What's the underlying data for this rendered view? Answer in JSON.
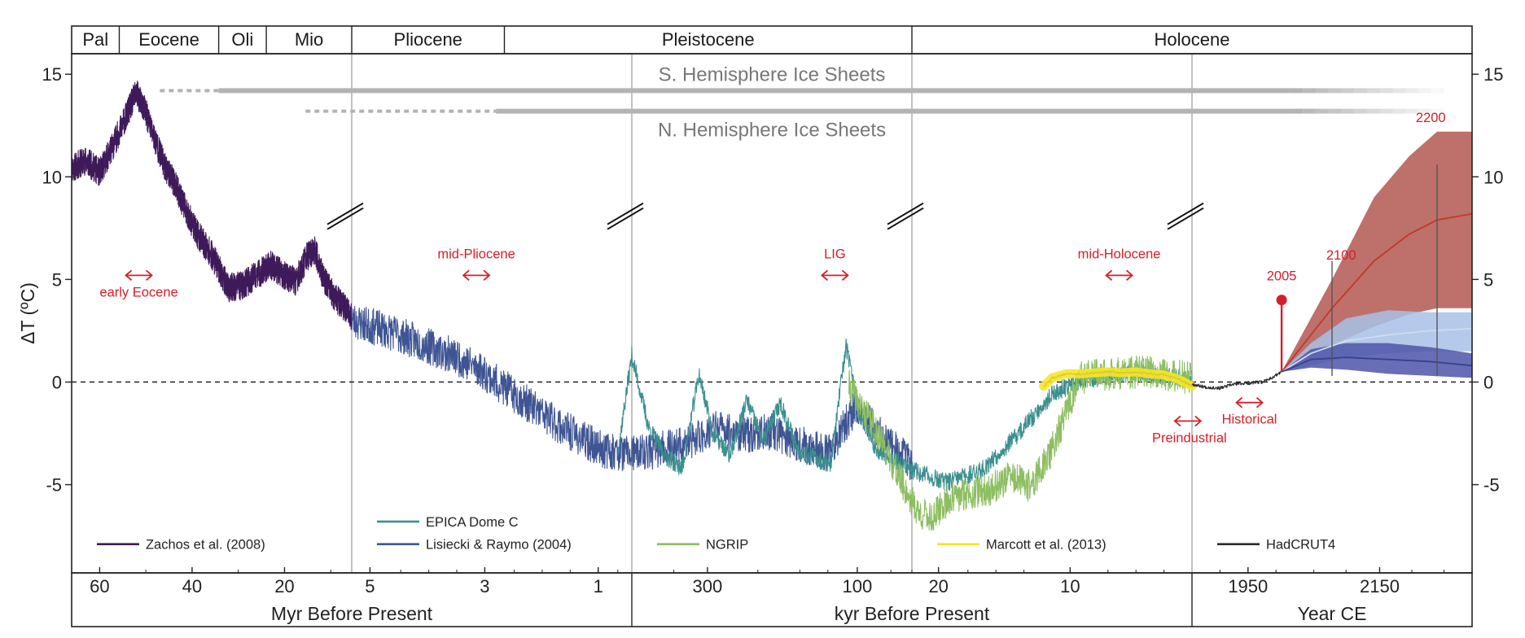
{
  "chart_data": {
    "type": "line",
    "ylabel": "ΔT (ºC)",
    "ylim": [
      -9.3,
      16.0
    ],
    "y_ticks": [
      15,
      10,
      5,
      0,
      -5
    ],
    "y_tick_labels": [
      "15",
      "10",
      "5",
      "0",
      "-5"
    ],
    "zero_line": "dashed",
    "epochs": [
      {
        "label": "Pal",
        "start": 0.0,
        "end": 0.034
      },
      {
        "label": "Eocene",
        "start": 0.034,
        "end": 0.105
      },
      {
        "label": "Oli",
        "start": 0.105,
        "end": 0.139
      },
      {
        "label": "Mio",
        "start": 0.139,
        "end": 0.2
      },
      {
        "label": "Pliocene",
        "start": 0.2,
        "end": 0.309
      },
      {
        "label": "Pleistocene",
        "start": 0.309,
        "end": 0.6
      },
      {
        "label": "Holocene",
        "start": 0.6,
        "end": 1.0
      }
    ],
    "panels": [
      {
        "id": "myr",
        "xlabel": "Myr Before Present",
        "start": 0.0,
        "end": 0.4,
        "ticks": [
          {
            "label": "60",
            "pos": 0.02
          },
          {
            "label": "40",
            "pos": 0.086
          },
          {
            "label": "20",
            "pos": 0.152
          },
          {
            "label": "5",
            "pos": 0.213
          },
          {
            "label": "3",
            "pos": 0.295
          },
          {
            "label": "1",
            "pos": 0.376
          }
        ]
      },
      {
        "id": "kyr",
        "xlabel": "kyr Before Present",
        "start": 0.4,
        "end": 0.8,
        "ticks": [
          {
            "label": "300",
            "pos": 0.454
          },
          {
            "label": "100",
            "pos": 0.561
          },
          {
            "label": "20",
            "pos": 0.619
          },
          {
            "label": "10",
            "pos": 0.713
          }
        ]
      },
      {
        "id": "ce",
        "xlabel": "Year CE",
        "start": 0.8,
        "end": 1.0,
        "ticks": [
          {
            "label": "1950",
            "pos": 0.84
          },
          {
            "label": "2150",
            "pos": 0.934
          }
        ]
      }
    ],
    "axis_breaks": [
      0.2,
      0.4,
      0.6,
      0.8
    ],
    "ice_sheets": [
      {
        "label": "S. Hemisphere Ice Sheets",
        "dash_start": 0.063,
        "solid_start": 0.105,
        "fade_start": 0.87,
        "end": 0.98,
        "y": 14.2
      },
      {
        "label": "N. Hemisphere Ice Sheets",
        "dash_start": 0.167,
        "solid_start": 0.303,
        "fade_start": 0.87,
        "end": 0.98,
        "y": 13.2
      }
    ],
    "annotations": [
      {
        "label": "early Eocene",
        "x": 0.048,
        "y": 5.2
      },
      {
        "label": "mid-Pliocene",
        "x": 0.289,
        "y": 5.2
      },
      {
        "label": "LIG",
        "x": 0.545,
        "y": 5.2
      },
      {
        "label": "mid-Holocene",
        "x": 0.748,
        "y": 5.2
      },
      {
        "label": "Preindustrial",
        "x": 0.797,
        "y": -1.9
      },
      {
        "label": "Historical",
        "x": 0.841,
        "y": -1.0
      }
    ],
    "projection_labels": [
      {
        "label": "2005",
        "x": 0.864,
        "y": 4.0
      },
      {
        "label": "2100",
        "x": 0.91,
        "y": 5.5
      },
      {
        "label": "2200",
        "x": 0.974,
        "y": 12.2
      }
    ],
    "series": [
      {
        "name": "Zachos et al. (2008)",
        "color": "#3f1a5a",
        "points": [
          [
            0.0,
            10.4
          ],
          [
            0.01,
            10.8
          ],
          [
            0.02,
            10.2
          ],
          [
            0.03,
            11.6
          ],
          [
            0.038,
            12.8
          ],
          [
            0.046,
            14.1
          ],
          [
            0.052,
            13.3
          ],
          [
            0.058,
            12.1
          ],
          [
            0.066,
            10.6
          ],
          [
            0.074,
            9.6
          ],
          [
            0.082,
            8.3
          ],
          [
            0.09,
            7.2
          ],
          [
            0.1,
            6.2
          ],
          [
            0.106,
            5.4
          ],
          [
            0.112,
            4.6
          ],
          [
            0.122,
            4.7
          ],
          [
            0.132,
            5.2
          ],
          [
            0.142,
            5.7
          ],
          [
            0.152,
            5.2
          ],
          [
            0.16,
            4.9
          ],
          [
            0.168,
            6.1
          ],
          [
            0.174,
            6.4
          ],
          [
            0.18,
            5.0
          ],
          [
            0.188,
            4.1
          ],
          [
            0.196,
            3.6
          ],
          [
            0.2,
            3.1
          ]
        ]
      },
      {
        "name": "Lisiecki & Raymo (2004)",
        "color": "#3f5593",
        "points": [
          [
            0.2,
            3.0
          ],
          [
            0.215,
            2.7
          ],
          [
            0.23,
            2.4
          ],
          [
            0.245,
            2.0
          ],
          [
            0.26,
            1.6
          ],
          [
            0.275,
            1.2
          ],
          [
            0.29,
            0.7
          ],
          [
            0.305,
            -0.1
          ],
          [
            0.32,
            -0.8
          ],
          [
            0.335,
            -1.5
          ],
          [
            0.35,
            -2.2
          ],
          [
            0.365,
            -2.8
          ],
          [
            0.38,
            -3.3
          ],
          [
            0.4,
            -3.5
          ],
          [
            0.42,
            -3.3
          ],
          [
            0.44,
            -3.0
          ],
          [
            0.46,
            -2.2
          ],
          [
            0.48,
            -2.6
          ],
          [
            0.5,
            -2.4
          ],
          [
            0.52,
            -3.0
          ],
          [
            0.54,
            -3.5
          ],
          [
            0.56,
            -1.2
          ],
          [
            0.58,
            -2.8
          ],
          [
            0.6,
            -4.0
          ]
        ]
      },
      {
        "name": "EPICA Dome C",
        "color": "#3b8f8e",
        "points": [
          [
            0.39,
            -3.4
          ],
          [
            0.4,
            1.3
          ],
          [
            0.412,
            -2.2
          ],
          [
            0.424,
            -3.6
          ],
          [
            0.436,
            -4.2
          ],
          [
            0.448,
            0.4
          ],
          [
            0.458,
            -2.5
          ],
          [
            0.47,
            -3.6
          ],
          [
            0.482,
            -0.9
          ],
          [
            0.494,
            -2.9
          ],
          [
            0.506,
            -1.0
          ],
          [
            0.518,
            -3.2
          ],
          [
            0.53,
            -3.7
          ],
          [
            0.542,
            -4.0
          ],
          [
            0.553,
            1.8
          ],
          [
            0.562,
            -1.5
          ],
          [
            0.574,
            -3.2
          ],
          [
            0.586,
            -3.8
          ],
          [
            0.6,
            -4.3
          ],
          [
            0.625,
            -4.9
          ],
          [
            0.65,
            -4.3
          ],
          [
            0.675,
            -2.6
          ],
          [
            0.7,
            -0.6
          ],
          [
            0.72,
            0.1
          ],
          [
            0.76,
            0.5
          ],
          [
            0.8,
            0.1
          ]
        ]
      },
      {
        "name": "NGRIP",
        "color": "#8dbe62",
        "points": [
          [
            0.555,
            -0.2
          ],
          [
            0.565,
            -1.4
          ],
          [
            0.575,
            -2.4
          ],
          [
            0.585,
            -3.8
          ],
          [
            0.595,
            -5.2
          ],
          [
            0.605,
            -6.4
          ],
          [
            0.615,
            -6.6
          ],
          [
            0.625,
            -5.8
          ],
          [
            0.64,
            -5.4
          ],
          [
            0.655,
            -5.3
          ],
          [
            0.67,
            -4.6
          ],
          [
            0.685,
            -5.1
          ],
          [
            0.7,
            -3.3
          ],
          [
            0.71,
            -1.5
          ],
          [
            0.72,
            0.2
          ],
          [
            0.74,
            0.4
          ],
          [
            0.77,
            0.5
          ],
          [
            0.8,
            0.2
          ]
        ]
      },
      {
        "name": "Marcott et al. (2013)",
        "color": "#f6e52b",
        "points": [
          [
            0.694,
            -0.2
          ],
          [
            0.7,
            0.2
          ],
          [
            0.71,
            0.4
          ],
          [
            0.72,
            0.4
          ],
          [
            0.73,
            0.45
          ],
          [
            0.74,
            0.5
          ],
          [
            0.75,
            0.45
          ],
          [
            0.76,
            0.5
          ],
          [
            0.77,
            0.4
          ],
          [
            0.78,
            0.35
          ],
          [
            0.79,
            0.15
          ],
          [
            0.8,
            -0.2
          ]
        ]
      },
      {
        "name": "HadCRUT4",
        "color": "#2b2b2b",
        "points": [
          [
            0.8,
            -0.1
          ],
          [
            0.81,
            -0.25
          ],
          [
            0.82,
            -0.3
          ],
          [
            0.83,
            -0.1
          ],
          [
            0.84,
            -0.05
          ],
          [
            0.85,
            0.0
          ],
          [
            0.858,
            0.25
          ],
          [
            0.864,
            0.5
          ]
        ]
      }
    ],
    "projection_bands": [
      {
        "name": "high",
        "color": "#b0504a",
        "upper": [
          [
            0.864,
            0.5
          ],
          [
            0.9,
            5.0
          ],
          [
            0.93,
            9.0
          ],
          [
            0.955,
            11.0
          ],
          [
            0.975,
            12.2
          ],
          [
            1.0,
            12.2
          ]
        ],
        "lower": [
          [
            0.864,
            0.5
          ],
          [
            0.9,
            1.8
          ],
          [
            0.93,
            2.7
          ],
          [
            0.955,
            3.3
          ],
          [
            0.975,
            3.6
          ],
          [
            1.0,
            3.6
          ]
        ],
        "median": [
          [
            0.864,
            0.5
          ],
          [
            0.9,
            3.6
          ],
          [
            0.93,
            5.9
          ],
          [
            0.955,
            7.2
          ],
          [
            0.975,
            7.9
          ],
          [
            1.0,
            8.2
          ]
        ]
      },
      {
        "name": "mid",
        "color": "#a8c1e6",
        "upper": [
          [
            0.864,
            0.5
          ],
          [
            0.885,
            1.9
          ],
          [
            0.91,
            3.1
          ],
          [
            0.94,
            3.5
          ],
          [
            0.97,
            3.4
          ],
          [
            1.0,
            3.4
          ]
        ],
        "lower": [
          [
            0.864,
            0.5
          ],
          [
            0.885,
            0.8
          ],
          [
            0.91,
            1.2
          ],
          [
            0.94,
            1.4
          ],
          [
            0.97,
            1.5
          ],
          [
            1.0,
            1.5
          ]
        ],
        "median": [
          [
            0.864,
            0.5
          ],
          [
            0.885,
            1.4
          ],
          [
            0.91,
            2.0
          ],
          [
            0.94,
            2.3
          ],
          [
            0.97,
            2.5
          ],
          [
            1.0,
            2.6
          ]
        ]
      },
      {
        "name": "low",
        "color": "#4d55a8",
        "upper": [
          [
            0.864,
            0.5
          ],
          [
            0.885,
            1.6
          ],
          [
            0.91,
            1.9
          ],
          [
            0.94,
            1.9
          ],
          [
            0.97,
            1.7
          ],
          [
            1.0,
            1.4
          ]
        ],
        "lower": [
          [
            0.864,
            0.5
          ],
          [
            0.885,
            0.7
          ],
          [
            0.91,
            0.6
          ],
          [
            0.94,
            0.4
          ],
          [
            0.97,
            0.3
          ],
          [
            1.0,
            0.2
          ]
        ],
        "median": [
          [
            0.864,
            0.5
          ],
          [
            0.885,
            1.1
          ],
          [
            0.91,
            1.2
          ],
          [
            0.94,
            1.1
          ],
          [
            0.97,
            1.0
          ],
          [
            1.0,
            0.8
          ]
        ]
      }
    ],
    "legend": [
      {
        "label": "Zachos et al. (2008)",
        "color": "#3f1a5a",
        "x": 0.018,
        "y": -7.9
      },
      {
        "label": "EPICA Dome C",
        "color": "#3b8f8e",
        "x": 0.218,
        "y": -6.8
      },
      {
        "label": "Lisiecki & Raymo (2004)",
        "color": "#3f5593",
        "x": 0.218,
        "y": -7.9
      },
      {
        "label": "NGRIP",
        "color": "#8dbe62",
        "x": 0.418,
        "y": -7.9
      },
      {
        "label": "Marcott et al. (2013)",
        "color": "#f6e52b",
        "x": 0.618,
        "y": -7.9
      },
      {
        "label": "HadCRUT4",
        "color": "#2b2b2b",
        "x": 0.818,
        "y": -7.9
      }
    ]
  }
}
